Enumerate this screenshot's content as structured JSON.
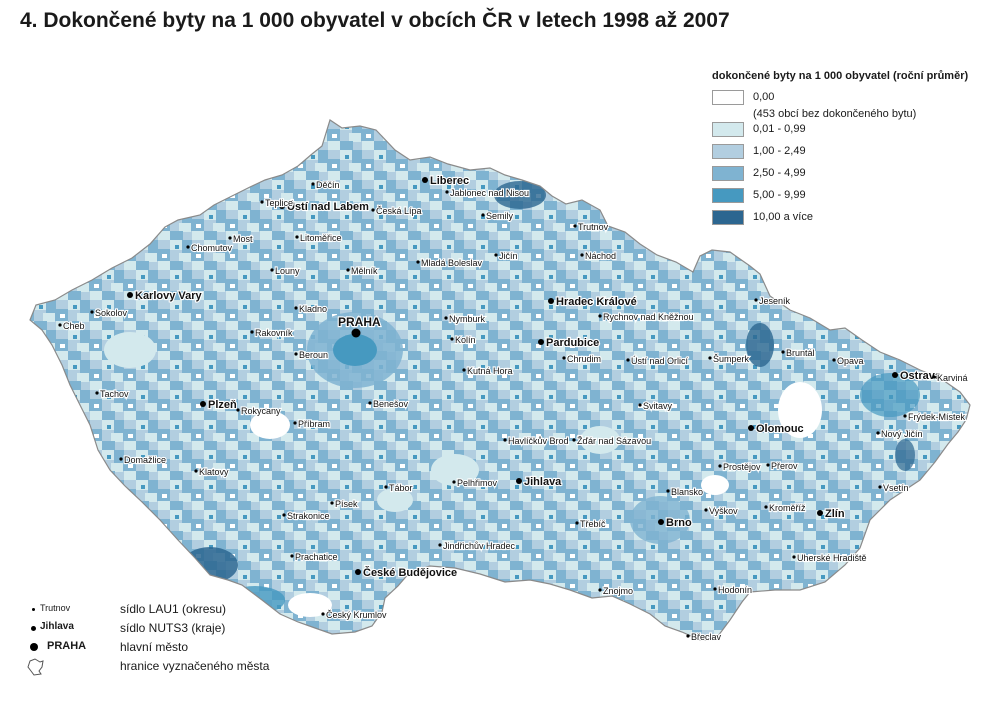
{
  "title": "4.  Dokončené byty na 1 000 obyvatel v obcích ČR v letech 1998 až 2007",
  "legend": {
    "title": "dokončené byty na 1 000 obyvatel (roční průměr)",
    "classes": [
      {
        "label": "0,00",
        "note": "(453 obcí bez dokončeného bytu)",
        "color": "#ffffff"
      },
      {
        "label": "0,01 - 0,99",
        "color": "#d3e9ed"
      },
      {
        "label": "1,00 - 2,49",
        "color": "#b2cee0"
      },
      {
        "label": "2,50 - 4,99",
        "color": "#7fb3d1"
      },
      {
        "label": "5,00 - 9,99",
        "color": "#4699c0"
      },
      {
        "label": "10,00 a více",
        "color": "#2c6690"
      }
    ]
  },
  "key": {
    "lau1_example": "Trutnov",
    "lau1_label": "sídlo LAU1 (okresu)",
    "nuts3_example": "Jihlava",
    "nuts3_label": "sídlo NUTS3 (kraje)",
    "capital_example": "PRAHA",
    "capital_label": "hlavní město",
    "border_label": "hranice vyznačeného města"
  },
  "capital": "PRAHA",
  "regional_seats": [
    "Karlovy Vary",
    "Ústí nad Labem",
    "Liberec",
    "Hradec Králové",
    "Pardubice",
    "Plzeň",
    "Jihlava",
    "České Budějovice",
    "Brno",
    "Zlín",
    "Olomouc",
    "Ostrava"
  ],
  "district_seats": [
    "Děčín",
    "Teplice",
    "Česká Lípa",
    "Jablonec nad Nisou",
    "Semily",
    "Trutnov",
    "Chomutov",
    "Most",
    "Litoměřice",
    "Mělník",
    "Mladá Boleslav",
    "Jičín",
    "Náchod",
    "Louny",
    "Sokolov",
    "Cheb",
    "Rakovník",
    "Kladno",
    "Nymburk",
    "Rychnov nad Kněžnou",
    "Jeseník",
    "Beroun",
    "Kolín",
    "Chrudim",
    "Ústí nad Orlicí",
    "Šumperk",
    "Bruntál",
    "Opava",
    "Karviná",
    "Tachov",
    "Rokycany",
    "Kutná Hora",
    "Benešov",
    "Svitavy",
    "Frýdek-Místek",
    "Příbram",
    "Havlíčkův Brod",
    "Žďár nad Sázavou",
    "Nový Jičín",
    "Domažlice",
    "Prostějov",
    "Přerov",
    "Klatovy",
    "Tábor",
    "Pelhřimov",
    "Blansko",
    "Vsetín",
    "Strakonice",
    "Písek",
    "Vyškov",
    "Kroměříž",
    "Třebíč",
    "Jindřichův Hradec",
    "Prachatice",
    "Uherské Hradiště",
    "Hodonín",
    "Znojmo",
    "Český Krumlov",
    "Břeclav"
  ]
}
